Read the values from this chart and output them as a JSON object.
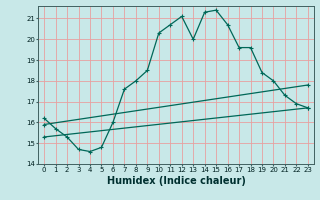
{
  "xlabel": "Humidex (Indice chaleur)",
  "background_color": "#c8e8e8",
  "grid_color": "#e8a0a0",
  "line_color": "#006858",
  "xlim": [
    -0.5,
    23.5
  ],
  "ylim": [
    14,
    21.6
  ],
  "yticks": [
    14,
    15,
    16,
    17,
    18,
    19,
    20,
    21
  ],
  "xticks": [
    0,
    1,
    2,
    3,
    4,
    5,
    6,
    7,
    8,
    9,
    10,
    11,
    12,
    13,
    14,
    15,
    16,
    17,
    18,
    19,
    20,
    21,
    22,
    23
  ],
  "line1_x": [
    0,
    1,
    2,
    3,
    4,
    5,
    6,
    7,
    8,
    9,
    10,
    11,
    12,
    13,
    14,
    15,
    16,
    17,
    18,
    19,
    20,
    21,
    22,
    23
  ],
  "line1_y": [
    16.2,
    15.7,
    15.3,
    14.7,
    14.6,
    14.8,
    16.0,
    17.6,
    18.0,
    18.5,
    20.3,
    20.7,
    21.1,
    20.0,
    21.3,
    21.4,
    20.7,
    19.6,
    19.6,
    18.4,
    18.0,
    17.3,
    16.9,
    16.7
  ],
  "line2_x": [
    0,
    23
  ],
  "line2_y": [
    15.9,
    17.8
  ],
  "line3_x": [
    0,
    23
  ],
  "line3_y": [
    15.3,
    16.7
  ],
  "xlabel_fontsize": 7,
  "tick_fontsize": 5
}
